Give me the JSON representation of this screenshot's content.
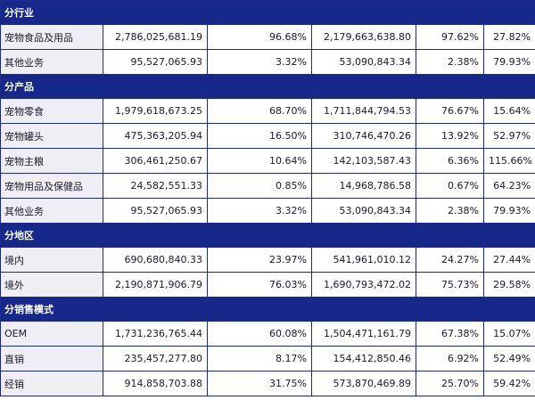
{
  "sections": [
    {
      "title": "分行业",
      "rows": [
        {
          "label": "宠物食品及用品",
          "revenue": "2,786,025,681.19",
          "revenue_pct": "96.68%",
          "cost": "2,179,663,638.80",
          "cost_pct": "97.62%",
          "margin": "27.82%"
        },
        {
          "label": "其他业务",
          "revenue": "95,527,065.93",
          "revenue_pct": "3.32%",
          "cost": "53,090,843.34",
          "cost_pct": "2.38%",
          "margin": "79.93%"
        }
      ]
    },
    {
      "title": "分产品",
      "rows": [
        {
          "label": "宠物零食",
          "revenue": "1,979,618,673.25",
          "revenue_pct": "68.70%",
          "cost": "1,711,844,794.53",
          "cost_pct": "76.67%",
          "margin": "15.64%"
        },
        {
          "label": "宠物罐头",
          "revenue": "475,363,205.94",
          "revenue_pct": "16.50%",
          "cost": "310,746,470.26",
          "cost_pct": "13.92%",
          "margin": "52.97%"
        },
        {
          "label": "宠物主粮",
          "revenue": "306,461,250.67",
          "revenue_pct": "10.64%",
          "cost": "142,103,587.43",
          "cost_pct": "6.36%",
          "margin": "115.66%"
        },
        {
          "label": "宠物用品及保健品",
          "revenue": "24,582,551.33",
          "revenue_pct": "0.85%",
          "cost": "14,968,786.58",
          "cost_pct": "0.67%",
          "margin": "64.23%"
        },
        {
          "label": "其他业务",
          "revenue": "95,527,065.93",
          "revenue_pct": "3.32%",
          "cost": "53,090,843.34",
          "cost_pct": "2.38%",
          "margin": "79.93%"
        }
      ]
    },
    {
      "title": "分地区",
      "rows": [
        {
          "label": "境内",
          "revenue": "690,680,840.33",
          "revenue_pct": "23.97%",
          "cost": "541,961,010.12",
          "cost_pct": "24.27%",
          "margin": "27.44%"
        },
        {
          "label": "境外",
          "revenue": "2,190,871,906.79",
          "revenue_pct": "76.03%",
          "cost": "1,690,793,472.02",
          "cost_pct": "75.73%",
          "margin": "29.58%"
        }
      ]
    },
    {
      "title": "分销售模式",
      "rows": [
        {
          "label": "OEM",
          "revenue": "1,731,236,765.44",
          "revenue_pct": "60.08%",
          "cost": "1,504,471,161.79",
          "cost_pct": "67.38%",
          "margin": "15.07%"
        },
        {
          "label": "直销",
          "revenue": "235,457,277.80",
          "revenue_pct": "8.17%",
          "cost": "154,412,850.46",
          "cost_pct": "6.92%",
          "margin": "52.49%"
        },
        {
          "label": "经销",
          "revenue": "914,858,703.88",
          "revenue_pct": "31.75%",
          "cost": "573,870,469.89",
          "cost_pct": "25.70%",
          "margin": "59.42%"
        }
      ]
    }
  ]
}
